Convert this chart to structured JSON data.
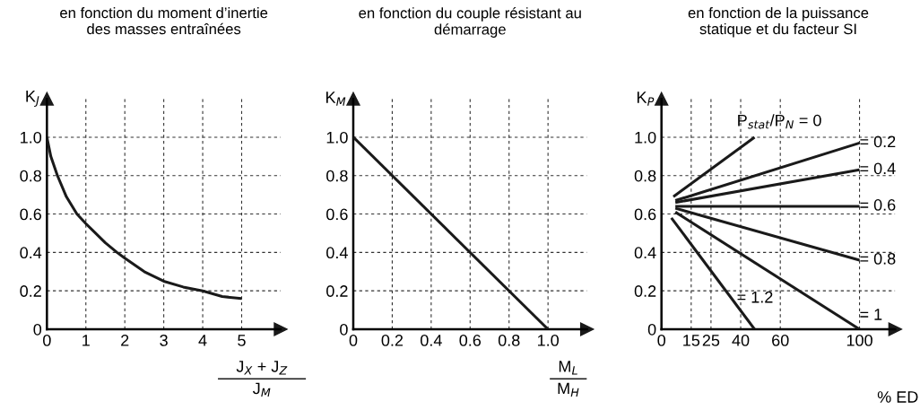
{
  "chart_data": [
    {
      "type": "line",
      "title": "en fonction du moment d’inertie\ndes masses entraînées",
      "xlabel": "J$_{X}$ + J$_{Z}$\nJ$_{M}$",
      "ylabel": "K$_{J}$",
      "xlim": [
        0,
        6
      ],
      "ylim": [
        0,
        1.2
      ],
      "xticks": [
        0,
        1,
        2,
        3,
        4,
        5
      ],
      "yticks": [
        0,
        {
          "value": 0.2,
          "label": "0.2"
        },
        {
          "value": 0.4,
          "label": "0.4"
        },
        {
          "value": 0.6,
          "label": "0.6"
        },
        {
          "value": 0.8,
          "label": "0.8"
        },
        {
          "value": 1.0,
          "label": "1.0"
        }
      ],
      "grid": true,
      "line_style": "solid",
      "marker": "none",
      "series": [
        {
          "color": "#1a1a1a",
          "x": [
            0,
            0.1,
            0.27,
            0.5,
            0.77,
            1,
            1.5,
            1.8,
            2,
            2.5,
            3,
            3.5,
            4,
            4.5,
            5
          ],
          "values": [
            1.0,
            0.9,
            0.8,
            0.69,
            0.6,
            0.55,
            0.45,
            0.4,
            0.37,
            0.3,
            0.25,
            0.22,
            0.2,
            0.17,
            0.16
          ]
        }
      ]
    },
    {
      "type": "line",
      "title": "en fonction du couple résistant au\ndémarrage",
      "xlabel": "M$_{L}$\nM$_{H}$",
      "ylabel": "K$_{M}$",
      "xlim": [
        0,
        1.2
      ],
      "ylim": [
        0,
        1.2
      ],
      "xticks": [
        0,
        {
          "value": 0.2,
          "label": "0.2"
        },
        {
          "value": 0.4,
          "label": "0.4"
        },
        {
          "value": 0.6,
          "label": "0.6"
        },
        {
          "value": 0.8,
          "label": "0.8"
        },
        {
          "value": 1.0,
          "label": "1.0"
        }
      ],
      "yticks": [
        0,
        {
          "value": 0.2,
          "label": "0.2"
        },
        {
          "value": 0.4,
          "label": "0.4"
        },
        {
          "value": 0.6,
          "label": "0.6"
        },
        {
          "value": 0.8,
          "label": "0.8"
        },
        {
          "value": 1.0,
          "label": "1.0"
        }
      ],
      "grid": true,
      "line_style": "solid",
      "marker": "none",
      "series": [
        {
          "color": "#1a1a1a",
          "x": [
            0,
            1.0
          ],
          "values": [
            1.0,
            0
          ]
        }
      ]
    },
    {
      "type": "line",
      "title": "en fonction de la puissance\nstatique et du facteur SI",
      "xlabel": "% ED",
      "ylabel": "K$_{P}$",
      "xlim": [
        0,
        118
      ],
      "ylim": [
        0,
        1.2
      ],
      "xticks": [
        0,
        15,
        25,
        40,
        60,
        100
      ],
      "yticks": [
        0,
        {
          "value": 0.2,
          "label": "0.2"
        },
        {
          "value": 0.4,
          "label": "0.4"
        },
        {
          "value": 0.6,
          "label": "0.6"
        },
        {
          "value": 0.8,
          "label": "0.8"
        },
        {
          "value": 1.0,
          "label": "1.0"
        }
      ],
      "grid": true,
      "line_style": "solid",
      "marker": "none",
      "series": [
        {
          "name": "P$_{stat}$/P$_{N}$ = 0",
          "color": "#1a1a1a",
          "x": [
            6,
            47
          ],
          "values": [
            0.69,
            1.0
          ]
        },
        {
          "name": "= 0.2",
          "color": "#1a1a1a",
          "x": [
            7,
            100
          ],
          "values": [
            0.67,
            0.97
          ]
        },
        {
          "name": "= 0.4",
          "color": "#1a1a1a",
          "x": [
            7,
            100
          ],
          "values": [
            0.66,
            0.83
          ]
        },
        {
          "name": "= 0.6",
          "color": "#1a1a1a",
          "x": [
            7,
            100
          ],
          "values": [
            0.64,
            0.64
          ]
        },
        {
          "name": "= 0.8",
          "color": "#1a1a1a",
          "x": [
            7,
            100
          ],
          "values": [
            0.63,
            0.36
          ]
        },
        {
          "name": "= 1",
          "color": "#1a1a1a",
          "x": [
            7,
            100
          ],
          "values": [
            0.61,
            0
          ]
        },
        {
          "name": "= 1.2",
          "color": "#1a1a1a",
          "x": [
            5,
            47
          ],
          "values": [
            0.58,
            0
          ]
        }
      ]
    }
  ]
}
